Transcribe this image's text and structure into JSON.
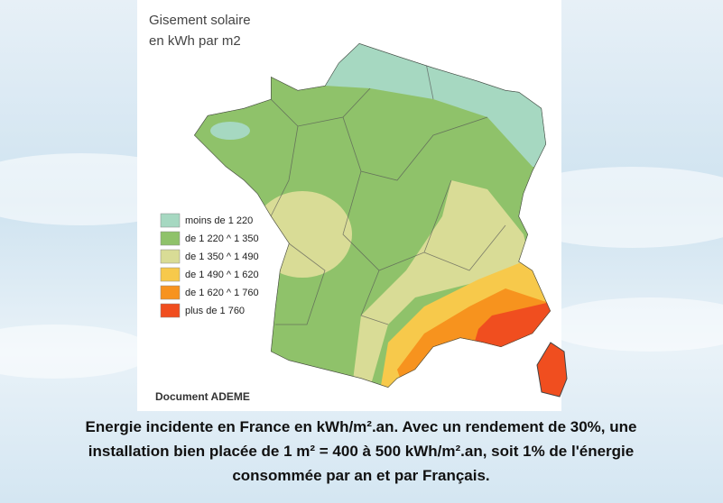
{
  "map": {
    "title_lines": [
      "Gisement solaire",
      "en kWh par m2"
    ],
    "legend": [
      {
        "label": "moins de 1 220",
        "color": "#a6d8c1"
      },
      {
        "label": "de 1 220 ^ 1 350",
        "color": "#8fc26a"
      },
      {
        "label": "de 1 350 ^ 1 490",
        "color": "#d9dc96"
      },
      {
        "label": "de 1 490 ^ 1 620",
        "color": "#f7c94b"
      },
      {
        "label": "de 1 620 ^ 1 760",
        "color": "#f7931e"
      },
      {
        "label": "plus de 1 760",
        "color": "#f04e1f"
      }
    ],
    "credit": "Document ADEME"
  },
  "caption": {
    "lines": [
      "Energie incidente en France en kWh/m².an. Avec un rendement de 30%, une",
      "installation bien placée de 1 m² = 400 à 500 kWh/m².an, soit 1% de l'énergie",
      "consommée par an et par Français."
    ]
  }
}
